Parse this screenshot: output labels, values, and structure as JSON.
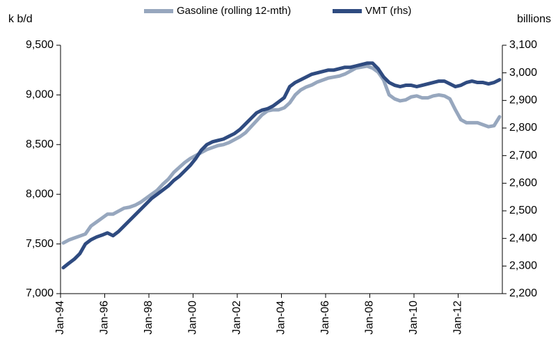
{
  "chart_data": {
    "type": "line",
    "y_label": "k b/d",
    "y2_label": "billions",
    "categories": [
      "Jan-94",
      null,
      null,
      null,
      null,
      null,
      null,
      null,
      "Jan-96",
      null,
      null,
      null,
      null,
      null,
      null,
      null,
      "Jan-98",
      null,
      null,
      null,
      null,
      null,
      null,
      null,
      "Jan-00",
      null,
      null,
      null,
      null,
      null,
      null,
      null,
      "Jan-02",
      null,
      null,
      null,
      null,
      null,
      null,
      null,
      "Jan-04",
      null,
      null,
      null,
      null,
      null,
      null,
      null,
      "Jan-06",
      null,
      null,
      null,
      null,
      null,
      null,
      null,
      "Jan-08",
      null,
      null,
      null,
      null,
      null,
      null,
      null,
      "Jan-10",
      null,
      null,
      null,
      null,
      null,
      null,
      null,
      "Jan-12",
      null,
      null,
      null,
      null,
      null,
      null,
      null
    ],
    "series": [
      {
        "name": "Gasoline (rolling 12-mth)",
        "color": "#97a7be",
        "axis": "y",
        "values": [
          7510,
          7540,
          7560,
          7580,
          7600,
          7680,
          7720,
          7760,
          7800,
          7800,
          7830,
          7860,
          7870,
          7890,
          7920,
          7960,
          8000,
          8040,
          8100,
          8150,
          8220,
          8270,
          8320,
          8360,
          8390,
          8420,
          8450,
          8470,
          8490,
          8500,
          8520,
          8550,
          8580,
          8620,
          8680,
          8740,
          8800,
          8840,
          8850,
          8850,
          8870,
          8920,
          9000,
          9050,
          9080,
          9100,
          9130,
          9150,
          9170,
          9180,
          9190,
          9210,
          9240,
          9270,
          9280,
          9290,
          9270,
          9230,
          9150,
          9000,
          8960,
          8940,
          8950,
          8980,
          8990,
          8970,
          8970,
          8990,
          9000,
          8990,
          8960,
          8850,
          8750,
          8720,
          8720,
          8720,
          8700,
          8680,
          8690,
          8780
        ]
      },
      {
        "name": "VMT (rhs)",
        "color": "#2f4b80",
        "axis": "y2",
        "values": [
          2294,
          2310,
          2325,
          2345,
          2380,
          2395,
          2405,
          2412,
          2420,
          2410,
          2425,
          2445,
          2465,
          2485,
          2505,
          2525,
          2545,
          2560,
          2575,
          2590,
          2610,
          2625,
          2645,
          2665,
          2690,
          2720,
          2740,
          2750,
          2755,
          2760,
          2770,
          2780,
          2795,
          2815,
          2835,
          2855,
          2865,
          2870,
          2880,
          2895,
          2910,
          2950,
          2965,
          2975,
          2985,
          2995,
          3000,
          3005,
          3010,
          3010,
          3015,
          3020,
          3020,
          3025,
          3030,
          3035,
          3035,
          3015,
          2985,
          2965,
          2955,
          2950,
          2955,
          2955,
          2950,
          2955,
          2960,
          2965,
          2970,
          2970,
          2960,
          2950,
          2955,
          2965,
          2970,
          2965,
          2965,
          2960,
          2965,
          2975
        ]
      }
    ],
    "ylim": [
      7000,
      9500
    ],
    "yticks": [
      {
        "value": 7000,
        "label": "7,000"
      },
      {
        "value": 7500,
        "label": "7,500"
      },
      {
        "value": 8000,
        "label": "8,000"
      },
      {
        "value": 8500,
        "label": "8,500"
      },
      {
        "value": 9000,
        "label": "9,000"
      },
      {
        "value": 9500,
        "label": "9,500"
      }
    ],
    "y2lim": [
      2200,
      3100
    ],
    "y2ticks": [
      {
        "value": 2200,
        "label": "2,200"
      },
      {
        "value": 2300,
        "label": "2,300"
      },
      {
        "value": 2400,
        "label": "2,400"
      },
      {
        "value": 2500,
        "label": "2,500"
      },
      {
        "value": 2600,
        "label": "2,600"
      },
      {
        "value": 2700,
        "label": "2,700"
      },
      {
        "value": 2800,
        "label": "2,800"
      },
      {
        "value": 2900,
        "label": "2,900"
      },
      {
        "value": 3000,
        "label": "3,000"
      },
      {
        "value": 3100,
        "label": "3,100"
      }
    ],
    "legend": "top",
    "grid": false
  }
}
